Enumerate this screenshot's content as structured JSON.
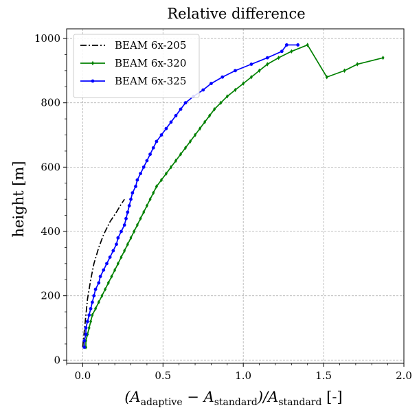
{
  "chart_data": {
    "type": "line",
    "title": "Relative difference",
    "xlabel": "(A_adaptive − A_standard) / A_standard [-]",
    "xlabel_parts": {
      "open": "(A",
      "sub1": "adaptive",
      "minus": " − A",
      "sub2": "standard",
      "slash": ")/A",
      "sub3": "standard",
      "unit": " [-]"
    },
    "ylabel": "height [m]",
    "xlim": [
      -0.1,
      2.0
    ],
    "ylim": [
      -10,
      1030
    ],
    "xticks": [
      0.0,
      0.5,
      1.0,
      1.5,
      2.0
    ],
    "xtick_labels": [
      "0.0",
      "0.5",
      "1.0",
      "1.5",
      "2.0"
    ],
    "yticks": [
      0,
      200,
      400,
      600,
      800,
      1000
    ],
    "ytick_labels": [
      "0",
      "200",
      "400",
      "600",
      "800",
      "1000"
    ],
    "grid": true,
    "legend_position": "top-left",
    "series": [
      {
        "name": "BEAM 6x-205",
        "color": "#000000",
        "linestyle": "dashdot",
        "marker": "none",
        "x": [
          0.0,
          0.01,
          0.02,
          0.03,
          0.05,
          0.07,
          0.1,
          0.13,
          0.17,
          0.21,
          0.24,
          0.26
        ],
        "y": [
          40,
          90,
          140,
          190,
          250,
          300,
          350,
          390,
          430,
          460,
          485,
          500
        ]
      },
      {
        "name": "BEAM 6x-320",
        "color": "#008000",
        "linestyle": "solid",
        "marker": "diamond",
        "x": [
          0.02,
          0.02,
          0.03,
          0.04,
          0.05,
          0.06,
          0.08,
          0.1,
          0.12,
          0.14,
          0.16,
          0.18,
          0.2,
          0.22,
          0.24,
          0.26,
          0.28,
          0.3,
          0.32,
          0.34,
          0.36,
          0.38,
          0.4,
          0.42,
          0.44,
          0.46,
          0.49,
          0.52,
          0.55,
          0.58,
          0.61,
          0.64,
          0.67,
          0.7,
          0.73,
          0.76,
          0.79,
          0.82,
          0.86,
          0.9,
          0.95,
          1.0,
          1.05,
          1.1,
          1.15,
          1.22,
          1.3,
          1.4,
          1.52,
          1.63,
          1.71,
          1.87
        ],
        "y": [
          40,
          60,
          80,
          100,
          120,
          140,
          160,
          180,
          200,
          220,
          240,
          260,
          280,
          300,
          320,
          340,
          360,
          380,
          400,
          420,
          440,
          460,
          480,
          500,
          520,
          540,
          560,
          580,
          600,
          620,
          640,
          660,
          680,
          700,
          720,
          740,
          760,
          780,
          800,
          820,
          840,
          860,
          880,
          900,
          920,
          940,
          960,
          980,
          880,
          900,
          920,
          940
        ]
      },
      {
        "name": "BEAM 6x-325",
        "color": "#0000ff",
        "linestyle": "solid",
        "marker": "circle",
        "x": [
          0.01,
          0.01,
          0.02,
          0.02,
          0.03,
          0.04,
          0.05,
          0.06,
          0.07,
          0.08,
          0.1,
          0.11,
          0.13,
          0.15,
          0.17,
          0.19,
          0.21,
          0.22,
          0.24,
          0.26,
          0.27,
          0.28,
          0.29,
          0.3,
          0.31,
          0.33,
          0.34,
          0.36,
          0.38,
          0.4,
          0.42,
          0.44,
          0.46,
          0.49,
          0.52,
          0.55,
          0.58,
          0.61,
          0.64,
          0.69,
          0.75,
          0.8,
          0.87,
          0.95,
          1.05,
          1.15,
          1.24,
          1.27,
          1.34
        ],
        "y": [
          40,
          60,
          80,
          100,
          120,
          140,
          160,
          180,
          200,
          220,
          240,
          260,
          280,
          300,
          320,
          340,
          360,
          380,
          400,
          420,
          440,
          460,
          480,
          500,
          520,
          540,
          560,
          580,
          600,
          620,
          640,
          660,
          680,
          700,
          720,
          740,
          760,
          780,
          800,
          820,
          840,
          860,
          880,
          900,
          920,
          940,
          960,
          980,
          980
        ]
      }
    ]
  }
}
